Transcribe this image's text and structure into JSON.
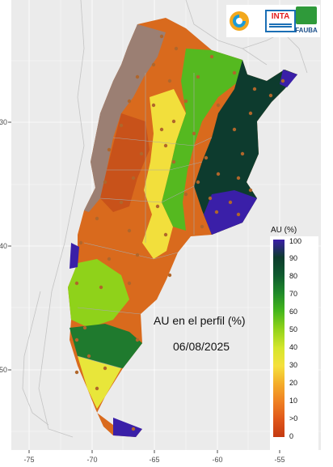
{
  "map": {
    "title": "AU en el perfil (%)",
    "date": "06/08/2025",
    "x_ticks": [
      "-75",
      "-70",
      "-65",
      "-60",
      "-55"
    ],
    "y_ticks": [
      "30",
      "40",
      "50"
    ]
  },
  "legend": {
    "title": "AU (%)",
    "labels": [
      "100",
      "90",
      "80",
      "70",
      "60",
      "50",
      "40",
      "30",
      "20",
      "10",
      ">0",
      "0"
    ],
    "colors": [
      "#3a1fa8",
      "#0d3b2e",
      "#0f5a2f",
      "#1f8a2a",
      "#44b61c",
      "#8fd21a",
      "#d5e62c",
      "#f5e03c",
      "#f4ad2a",
      "#ef8123",
      "#e0571a",
      "#c43a11"
    ]
  },
  "logos": {
    "inta": "INTA",
    "fauba": "FAUBA"
  },
  "colors": {
    "background": "#ebebeb",
    "grid": "#ffffff",
    "dry": "#c64b14",
    "wet": "#0d3b2e",
    "flooded": "#3a1fa8",
    "mountain": "#9b7f73"
  }
}
